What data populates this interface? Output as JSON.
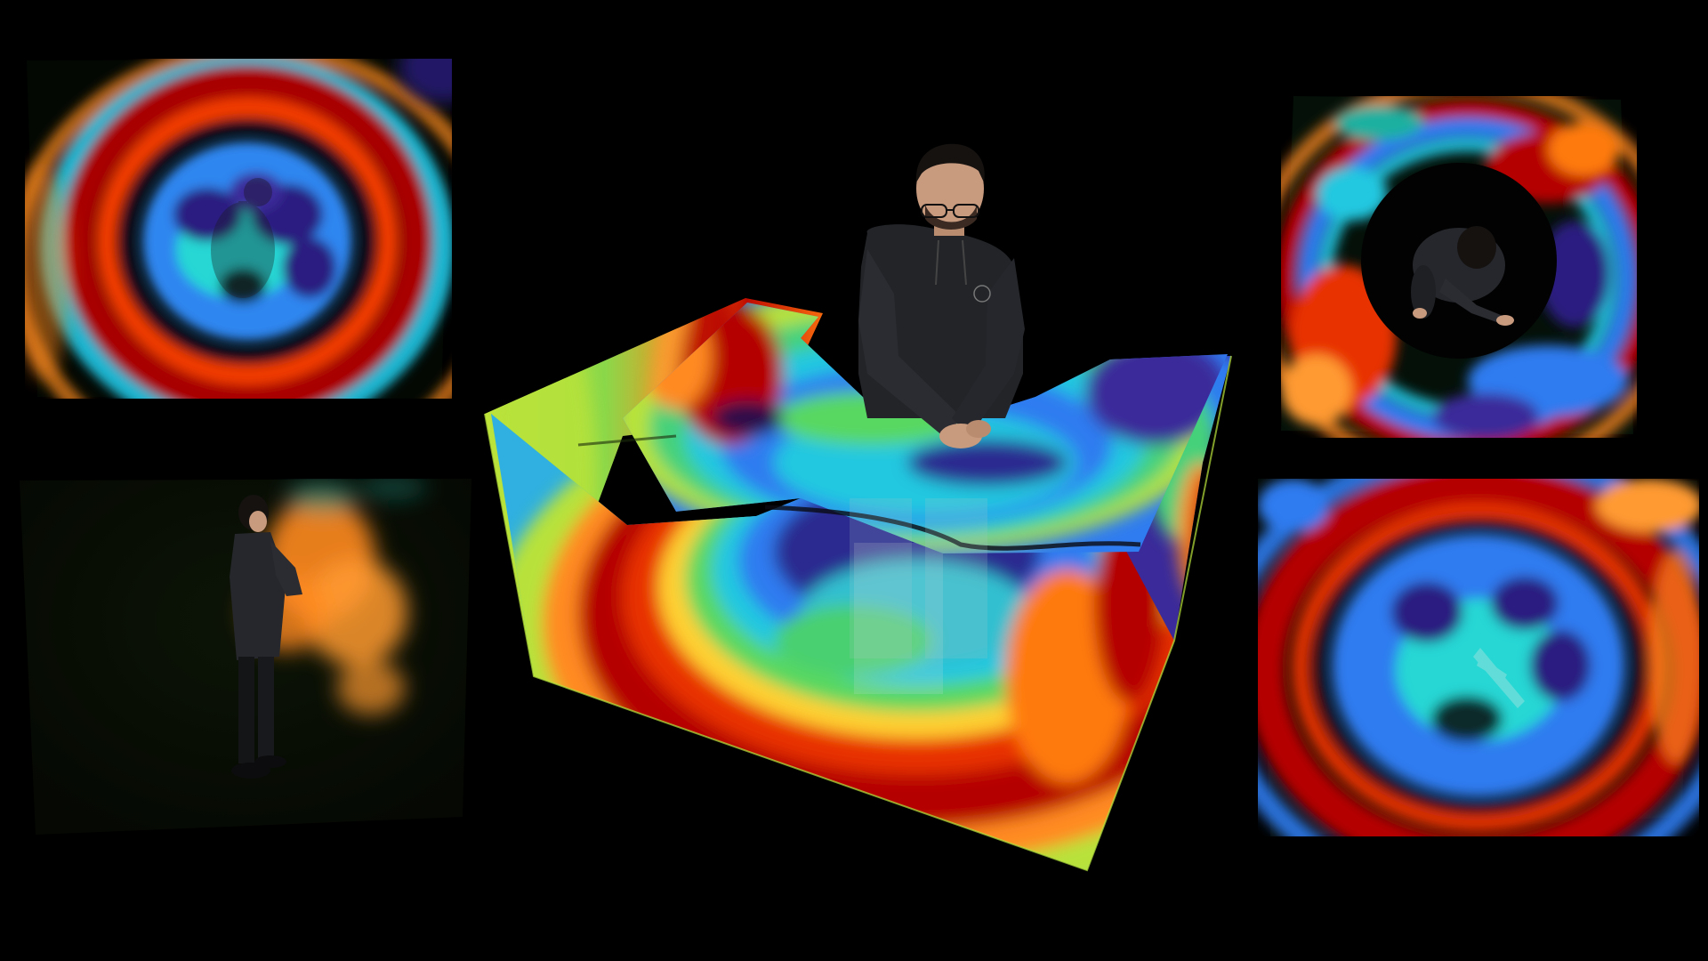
{
  "scene": {
    "background": "#000000",
    "views": [
      {
        "name": "top-left-overhead-view",
        "palette": "wave-thermal"
      },
      {
        "name": "bottom-left-side-view",
        "palette": "orange-glow"
      },
      {
        "name": "center-volume-view",
        "palette": "wave-thermal"
      },
      {
        "name": "top-right-overhead-view",
        "palette": "wave-thermal"
      },
      {
        "name": "bottom-right-overhead-view",
        "palette": "wave-thermal"
      }
    ],
    "colors": {
      "dark_red": "#b50000",
      "red": "#e02a00",
      "orange": "#ff7a1a",
      "yellow_green": "#b8e23a",
      "green": "#44d17a",
      "cyan": "#22d0e0",
      "blue": "#2f7cf0",
      "indigo": "#3a2a9a",
      "purple": "#2a0d4a",
      "glow_orange": "#ff9a30",
      "skin": "#c89a7e",
      "hoodie": "#222428",
      "hair": "#151210"
    }
  }
}
